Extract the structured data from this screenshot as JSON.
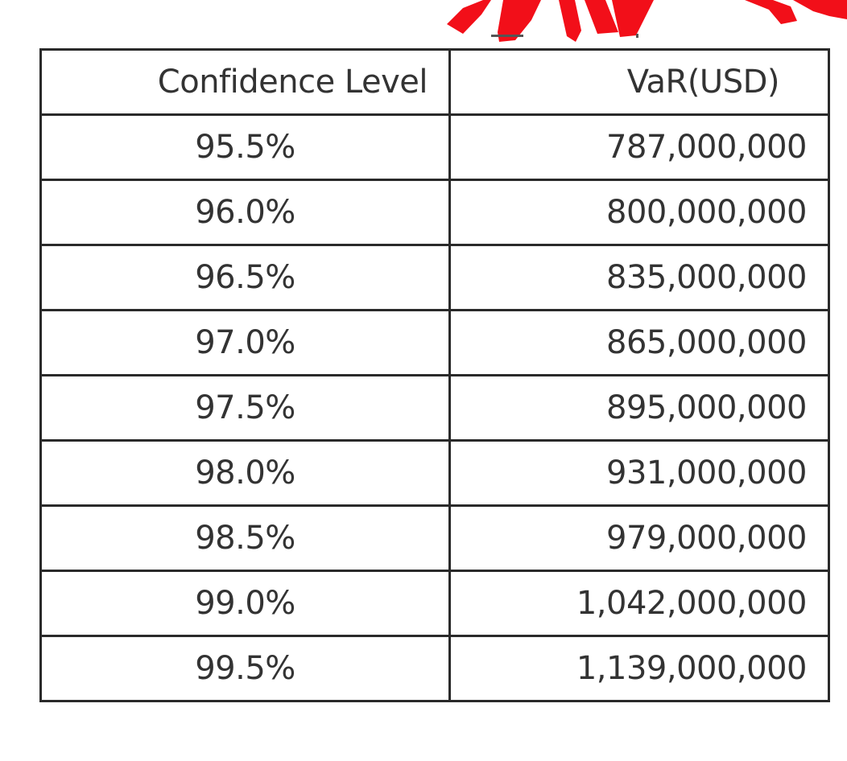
{
  "colors": {
    "watermark": "#f20f19",
    "border": "#2a2a2a",
    "text": "#333333",
    "background": "#ffffff"
  },
  "chart_data": {
    "type": "table",
    "columns": [
      "Confidence Level",
      "VaR(USD)"
    ],
    "rows": [
      [
        "95.5%",
        "787,000,000"
      ],
      [
        "96.0%",
        "800,000,000"
      ],
      [
        "96.5%",
        "835,000,000"
      ],
      [
        "97.0%",
        "865,000,000"
      ],
      [
        "97.5%",
        "895,000,000"
      ],
      [
        "98.0%",
        "931,000,000"
      ],
      [
        "98.5%",
        "979,000,000"
      ],
      [
        "99.0%",
        "1,042,000,000"
      ],
      [
        "99.5%",
        "1,139,000,000"
      ]
    ]
  }
}
